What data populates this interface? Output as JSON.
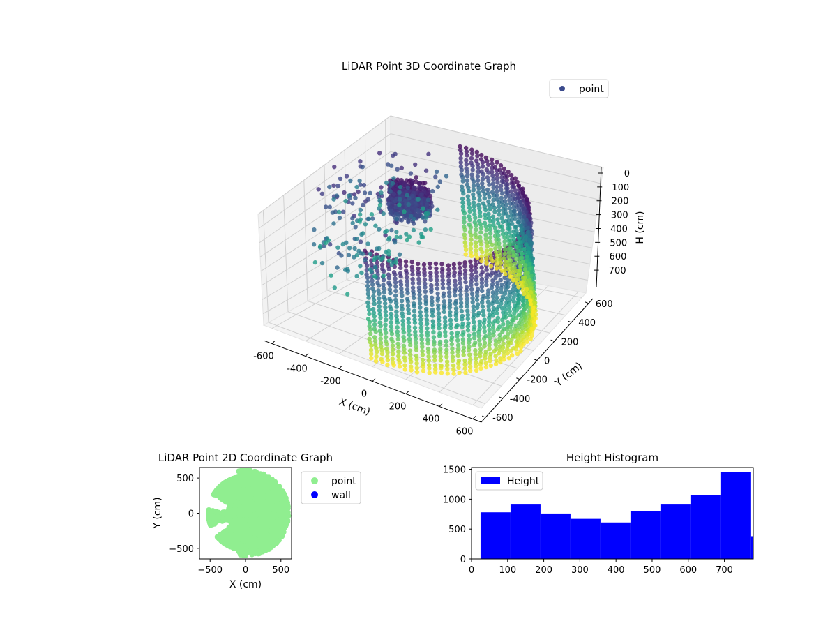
{
  "chart_data": [
    {
      "type": "scatter3d",
      "title": "LiDAR Point 3D Coordinate Graph",
      "xlabel": "X (cm)",
      "ylabel": "Y (cm)",
      "zlabel": "H (cm)",
      "xticks": [
        -600,
        -400,
        -200,
        0,
        200,
        400,
        600
      ],
      "yticks": [
        -600,
        -400,
        -200,
        0,
        200,
        400,
        600
      ],
      "zticks": [
        0,
        100,
        200,
        300,
        400,
        500,
        600,
        700
      ],
      "xlim": [
        -650,
        650
      ],
      "ylim": [
        -650,
        650
      ],
      "zlim": [
        0,
        780
      ],
      "z_axis_inverted": true,
      "colormap": "viridis",
      "grid": true,
      "legend": {
        "placement": "top-right",
        "entries": [
          {
            "label": "point",
            "color": "#3b4a8c"
          }
        ]
      },
      "series": [
        {
          "name": "point",
          "description_of_shape": "cylindrical wall of points around the scanner with a cluster near the ceiling",
          "x_range": [
            -620,
            620
          ],
          "y_range": [
            -620,
            620
          ],
          "h_range": [
            0,
            780
          ]
        }
      ]
    },
    {
      "type": "scatter",
      "title": "LiDAR Point 2D Coordinate Graph",
      "xlabel": "X (cm)",
      "ylabel": "Y (cm)",
      "xticks": [
        -500,
        0,
        500
      ],
      "yticks": [
        -500,
        0,
        500
      ],
      "xlim": [
        -650,
        650
      ],
      "ylim": [
        -650,
        650
      ],
      "legend": {
        "placement": "outside-right",
        "entries": [
          {
            "label": "point",
            "color": "#90ee90"
          },
          {
            "label": "wall",
            "color": "#0000ff"
          }
        ]
      },
      "series": [
        {
          "name": "point",
          "color": "#90ee90"
        },
        {
          "name": "wall",
          "color": "#0000ff"
        }
      ]
    },
    {
      "type": "histogram",
      "title": "Height Histogram",
      "xlabel": "",
      "ylabel": "",
      "xticks": [
        0,
        100,
        200,
        300,
        400,
        500,
        600,
        700
      ],
      "yticks": [
        0,
        500,
        1000,
        1500
      ],
      "xlim": [
        0,
        780
      ],
      "ylim": [
        0,
        1530
      ],
      "legend": {
        "placement": "top-left",
        "entries": [
          {
            "label": "Height",
            "color": "#0000ff"
          }
        ]
      },
      "bar_color": "#0000ff",
      "bins": [
        {
          "from": 25,
          "to": 108,
          "count": 780
        },
        {
          "from": 108,
          "to": 191,
          "count": 910
        },
        {
          "from": 191,
          "to": 274,
          "count": 760
        },
        {
          "from": 274,
          "to": 357,
          "count": 670
        },
        {
          "from": 357,
          "to": 440,
          "count": 610
        },
        {
          "from": 440,
          "to": 523,
          "count": 800
        },
        {
          "from": 523,
          "to": 606,
          "count": 910
        },
        {
          "from": 606,
          "to": 689,
          "count": 1070
        },
        {
          "from": 689,
          "to": 772,
          "count": 1450
        },
        {
          "from": 772,
          "to": 780,
          "count": 380
        }
      ]
    }
  ]
}
